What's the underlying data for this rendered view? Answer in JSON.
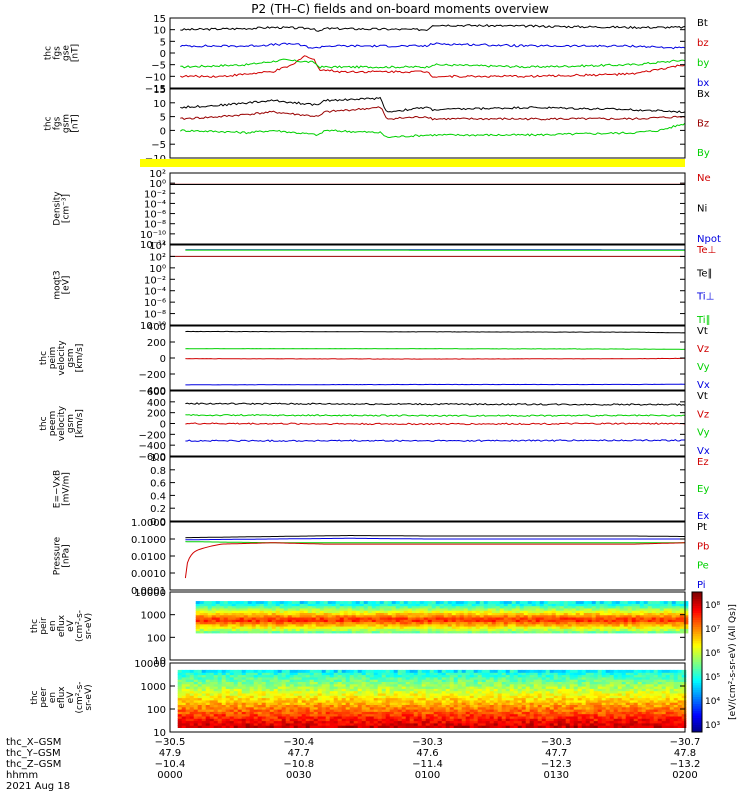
{
  "title": "P2 (TH–C) fields and on-board moments overview",
  "colors": {
    "black": "#000000",
    "red": "#d00000",
    "green": "#00d000",
    "blue": "#0000e0",
    "yellow": "#ffff00",
    "darkred": "#990000"
  },
  "chart_data": [
    {
      "id": "fgs-gse",
      "type": "line",
      "ylabel": [
        "thc",
        "fgs",
        "gse",
        "[nT]"
      ],
      "ylim": [
        -15,
        15
      ],
      "yticks": [
        "15",
        "10",
        "5",
        "0",
        "−5",
        "−10",
        "−15"
      ],
      "legend": [
        {
          "text": "Bt",
          "color": "black"
        },
        {
          "text": "bz",
          "color": "red"
        },
        {
          "text": "by",
          "color": "green"
        },
        {
          "text": "bx",
          "color": "blue"
        }
      ],
      "series": [
        {
          "name": "Bt",
          "color": "black",
          "x": [
            0.02,
            0.15,
            0.2,
            0.28,
            0.29,
            0.3,
            0.5,
            0.51,
            0.7,
            0.9,
            1.0
          ],
          "y": [
            10,
            10.5,
            11,
            10.5,
            9,
            10.5,
            10,
            12,
            11.5,
            11,
            11
          ]
        },
        {
          "name": "bz",
          "color": "red",
          "x": [
            0.02,
            0.1,
            0.15,
            0.2,
            0.24,
            0.26,
            0.28,
            0.29,
            0.33,
            0.5,
            0.51,
            0.7,
            0.9,
            0.95,
            1.0
          ],
          "y": [
            -10,
            -10,
            -9,
            -8,
            -5,
            -1,
            -3,
            -7,
            -8,
            -8,
            -10,
            -10,
            -9,
            -7,
            -5
          ]
        },
        {
          "name": "by",
          "color": "green",
          "x": [
            0.02,
            0.15,
            0.22,
            0.28,
            0.29,
            0.5,
            0.51,
            0.7,
            0.9,
            1.0
          ],
          "y": [
            -6,
            -5,
            -3,
            -4,
            -6,
            -6,
            -5,
            -6,
            -5,
            -3
          ]
        },
        {
          "name": "bx",
          "color": "blue",
          "x": [
            0.02,
            0.15,
            0.24,
            0.28,
            0.3,
            0.5,
            0.51,
            0.7,
            0.9,
            1.0
          ],
          "y": [
            3,
            3,
            4,
            2,
            3,
            3,
            4,
            3,
            3,
            2
          ]
        }
      ]
    },
    {
      "id": "fgs-gsm",
      "type": "line",
      "ylabel": [
        "thc",
        "fgs",
        "gsm",
        "[nT]"
      ],
      "ylim": [
        -15,
        15
      ],
      "yticks": [
        "15",
        "10",
        "5",
        "0",
        "−5",
        "−10"
      ],
      "legend": [
        {
          "text": "Bx",
          "color": "black"
        },
        {
          "text": "Bz",
          "color": "darkred"
        },
        {
          "text": "By",
          "color": "green"
        }
      ],
      "series": [
        {
          "name": "Bx",
          "color": "black",
          "x": [
            0.02,
            0.1,
            0.15,
            0.2,
            0.29,
            0.3,
            0.41,
            0.42,
            0.5,
            0.51,
            0.7,
            0.9,
            1.0
          ],
          "y": [
            7,
            8,
            9,
            10,
            8,
            10,
            11,
            5,
            7,
            6,
            7,
            6,
            5
          ]
        },
        {
          "name": "Bz",
          "color": "darkred",
          "x": [
            0.02,
            0.1,
            0.15,
            0.2,
            0.29,
            0.3,
            0.41,
            0.42,
            0.5,
            0.51,
            0.7,
            0.9,
            1.0
          ],
          "y": [
            2,
            3,
            4,
            5,
            3,
            5,
            7,
            2,
            3,
            2,
            2,
            2,
            3
          ]
        },
        {
          "name": "By",
          "color": "green",
          "x": [
            0.02,
            0.1,
            0.15,
            0.2,
            0.29,
            0.3,
            0.41,
            0.42,
            0.5,
            0.51,
            0.7,
            0.9,
            0.95,
            1.0
          ],
          "y": [
            -3,
            -3.5,
            -4,
            -3,
            -5,
            -3,
            -4,
            -6,
            -5,
            -5,
            -5,
            -4,
            -3,
            0
          ]
        }
      ]
    },
    {
      "id": "density",
      "type": "line",
      "scale": "log",
      "ylabel": [
        "Density",
        "[cm⁻³]"
      ],
      "ylim_exp": [
        -12,
        2
      ],
      "yticks": [
        "10²",
        "10⁰",
        "10⁻²",
        "10⁻⁴",
        "10⁻⁶",
        "10⁻⁸",
        "10⁻¹⁰",
        "10⁻¹²"
      ],
      "legend": [
        {
          "text": "Ne",
          "color": "red"
        },
        {
          "text": "Ni",
          "color": "black"
        },
        {
          "text": "Npot",
          "color": "blue"
        }
      ],
      "series": [
        {
          "name": "Ne",
          "color": "darkred",
          "x": [
            0,
            1
          ],
          "y": [
            0.6,
            0.6
          ]
        },
        {
          "name": "Ni",
          "color": "black",
          "x": [
            0,
            1
          ],
          "y": [
            0.55,
            0.55
          ]
        }
      ]
    },
    {
      "id": "moms-temp",
      "type": "line",
      "scale": "log",
      "ylabel": [
        "moqt3",
        "[eV]"
      ],
      "ylim_exp": [
        -10,
        4
      ],
      "yticks": [
        "10⁴",
        "10²",
        "10⁰",
        "10⁻²",
        "10⁻⁴",
        "10⁻⁶",
        "10⁻⁸",
        "10⁻¹⁰"
      ],
      "legend": [
        {
          "text": "Te⊥",
          "color": "red"
        },
        {
          "text": "Te∥",
          "color": "black"
        },
        {
          "text": "Ti⊥",
          "color": "blue"
        },
        {
          "text": "Ti∥",
          "color": "green"
        }
      ],
      "series": [
        {
          "name": "Ti⊥",
          "color": "blue",
          "x": [
            0.03,
            1
          ],
          "y": [
            1500,
            1400
          ]
        },
        {
          "name": "Ti∥",
          "color": "green",
          "x": [
            0.03,
            1
          ],
          "y": [
            1300,
            1200
          ]
        },
        {
          "name": "Te⊥",
          "color": "darkred",
          "x": [
            0,
            1
          ],
          "y": [
            100,
            100
          ]
        }
      ]
    },
    {
      "id": "peim-velocity",
      "type": "line",
      "ylabel": [
        "thc",
        "peim",
        "velocity",
        "gsm",
        "[km/s]"
      ],
      "ylim": [
        -450,
        480
      ],
      "yticks": [
        "400",
        "200",
        "0",
        "−200",
        "−400"
      ],
      "legend": [
        {
          "text": "Vt",
          "color": "black"
        },
        {
          "text": "Vz",
          "color": "red"
        },
        {
          "text": "Vy",
          "color": "green"
        },
        {
          "text": "Vx",
          "color": "blue"
        }
      ],
      "series": [
        {
          "name": "Vt",
          "color": "black",
          "x": [
            0.03,
            0.5,
            0.9,
            1
          ],
          "y": [
            400,
            395,
            390,
            380
          ]
        },
        {
          "name": "Vy",
          "color": "green",
          "x": [
            0.03,
            0.5,
            0.9,
            1
          ],
          "y": [
            150,
            150,
            145,
            140
          ]
        },
        {
          "name": "Vz",
          "color": "red",
          "x": [
            0.03,
            0.5,
            0.9,
            1
          ],
          "y": [
            5,
            0,
            5,
            10
          ]
        },
        {
          "name": "Vx",
          "color": "blue",
          "x": [
            0.03,
            0.5,
            0.9,
            1
          ],
          "y": [
            -375,
            -370,
            -370,
            -365
          ]
        }
      ]
    },
    {
      "id": "peem-velocity",
      "type": "line",
      "ylabel": [
        "thc",
        "peem",
        "velocity",
        "gsm",
        "[km/s]"
      ],
      "ylim": [
        -620,
        620
      ],
      "yticks": [
        "600",
        "400",
        "200",
        "0",
        "−200",
        "−400",
        "−600"
      ],
      "legend": [
        {
          "text": "Vt",
          "color": "black"
        },
        {
          "text": "Vz",
          "color": "red"
        },
        {
          "text": "Vy",
          "color": "green"
        },
        {
          "text": "Vx",
          "color": "blue"
        }
      ],
      "series": [
        {
          "name": "Vt",
          "color": "black",
          "x": [
            0.03,
            0.5,
            1
          ],
          "y": [
            380,
            370,
            360
          ]
        },
        {
          "name": "Vy",
          "color": "green",
          "x": [
            0.03,
            0.5,
            1
          ],
          "y": [
            160,
            150,
            150
          ]
        },
        {
          "name": "Vz",
          "color": "red",
          "x": [
            0.03,
            0.5,
            1
          ],
          "y": [
            0,
            -10,
            0
          ]
        },
        {
          "name": "Vx",
          "color": "blue",
          "x": [
            0.03,
            0.5,
            1
          ],
          "y": [
            -330,
            -330,
            -320
          ]
        }
      ]
    },
    {
      "id": "efield",
      "type": "line",
      "ylabel": [
        "E=−VxB",
        "[mV/m]"
      ],
      "ylim": [
        0,
        1
      ],
      "yticks": [
        "1.0",
        "0.8",
        "0.6",
        "0.4",
        "0.2",
        "0.0"
      ],
      "legend": [
        {
          "text": "Ez",
          "color": "red"
        },
        {
          "text": "Ey",
          "color": "green"
        },
        {
          "text": "Ex",
          "color": "blue"
        }
      ],
      "series": []
    },
    {
      "id": "pressure",
      "type": "line",
      "scale": "log",
      "ylabel": [
        "Pressure",
        "[nPa]"
      ],
      "ylim_exp": [
        -4,
        0
      ],
      "yticks": [
        "1.0000",
        "0.1000",
        "0.0100",
        "0.0010",
        "0.0001"
      ],
      "legend": [
        {
          "text": "Pt",
          "color": "black"
        },
        {
          "text": "Pb",
          "color": "red"
        },
        {
          "text": "Pe",
          "color": "green"
        },
        {
          "text": "Pi",
          "color": "blue"
        }
      ],
      "series": [
        {
          "name": "Pt",
          "color": "black",
          "x": [
            0.03,
            0.2,
            0.35,
            0.5,
            0.7,
            0.9,
            1
          ],
          "y": [
            0.12,
            0.14,
            0.16,
            0.15,
            0.15,
            0.15,
            0.14
          ]
        },
        {
          "name": "Pi",
          "color": "blue",
          "x": [
            0.03,
            0.2,
            0.35,
            0.5,
            0.7,
            0.9,
            1
          ],
          "y": [
            0.09,
            0.1,
            0.11,
            0.1,
            0.1,
            0.1,
            0.1
          ]
        },
        {
          "name": "Pe",
          "color": "green",
          "x": [
            0.03,
            0.2,
            0.35,
            0.5,
            0.7,
            0.9,
            1
          ],
          "y": [
            0.07,
            0.06,
            0.06,
            0.06,
            0.06,
            0.06,
            0.06
          ]
        },
        {
          "name": "Pb",
          "color": "red",
          "x": [
            0.03,
            0.035,
            0.05,
            0.1,
            0.2,
            0.3,
            0.5,
            0.7,
            0.9,
            1
          ],
          "y": [
            0.0005,
            0.005,
            0.02,
            0.05,
            0.06,
            0.05,
            0.05,
            0.05,
            0.05,
            0.06
          ]
        }
      ]
    },
    {
      "id": "peir-eflux",
      "type": "heatmap",
      "scale": "log",
      "ylabel": [
        "thc",
        "peir",
        "en",
        "eflux",
        "eV",
        "(cm²-s-",
        "sr-eV)"
      ],
      "ylim_exp": [
        0.5,
        4.3
      ],
      "yticks": [
        "10000",
        "1000",
        "100",
        "10"
      ],
      "energy_exp": [
        2,
        3.7
      ],
      "x_start": 0.05
    },
    {
      "id": "peer-eflux",
      "type": "heatmap",
      "scale": "log",
      "ylabel": [
        "thc",
        "peer",
        "en",
        "eflux",
        "eV",
        "(cm²-s-",
        "sr-eV)"
      ],
      "ylim_exp": [
        0.5,
        4.3
      ],
      "yticks": [
        "10000",
        "1000",
        "100",
        "10"
      ],
      "energy_exp": [
        0.7,
        3.8
      ],
      "x_start": 0.015
    }
  ],
  "colorbar": {
    "labels": [
      "10⁸",
      "10⁷",
      "10⁶",
      "10⁵",
      "10⁴",
      "10³"
    ],
    "label": "[eV/(cm²-s-sr-eV) (All Qs)]"
  },
  "xaxis": {
    "row_labels": [
      "thc_X–GSM",
      "thc_Y–GSM",
      "thc_Z–GSM",
      "hhmm",
      "2021 Aug 18"
    ],
    "ticks": [
      {
        "frac": 0.0,
        "vals": [
          "−30.5",
          "47.9",
          "−10.4",
          "0000"
        ]
      },
      {
        "frac": 0.25,
        "vals": [
          "−30.4",
          "47.7",
          "−10.8",
          "0030"
        ]
      },
      {
        "frac": 0.5,
        "vals": [
          "−30.3",
          "47.6",
          "−11.4",
          "0100"
        ]
      },
      {
        "frac": 0.75,
        "vals": [
          "−30.3",
          "47.7",
          "−12.3",
          "0130"
        ]
      },
      {
        "frac": 1.0,
        "vals": [
          "−30.7",
          "47.8",
          "−13.2",
          "0200"
        ]
      }
    ]
  }
}
